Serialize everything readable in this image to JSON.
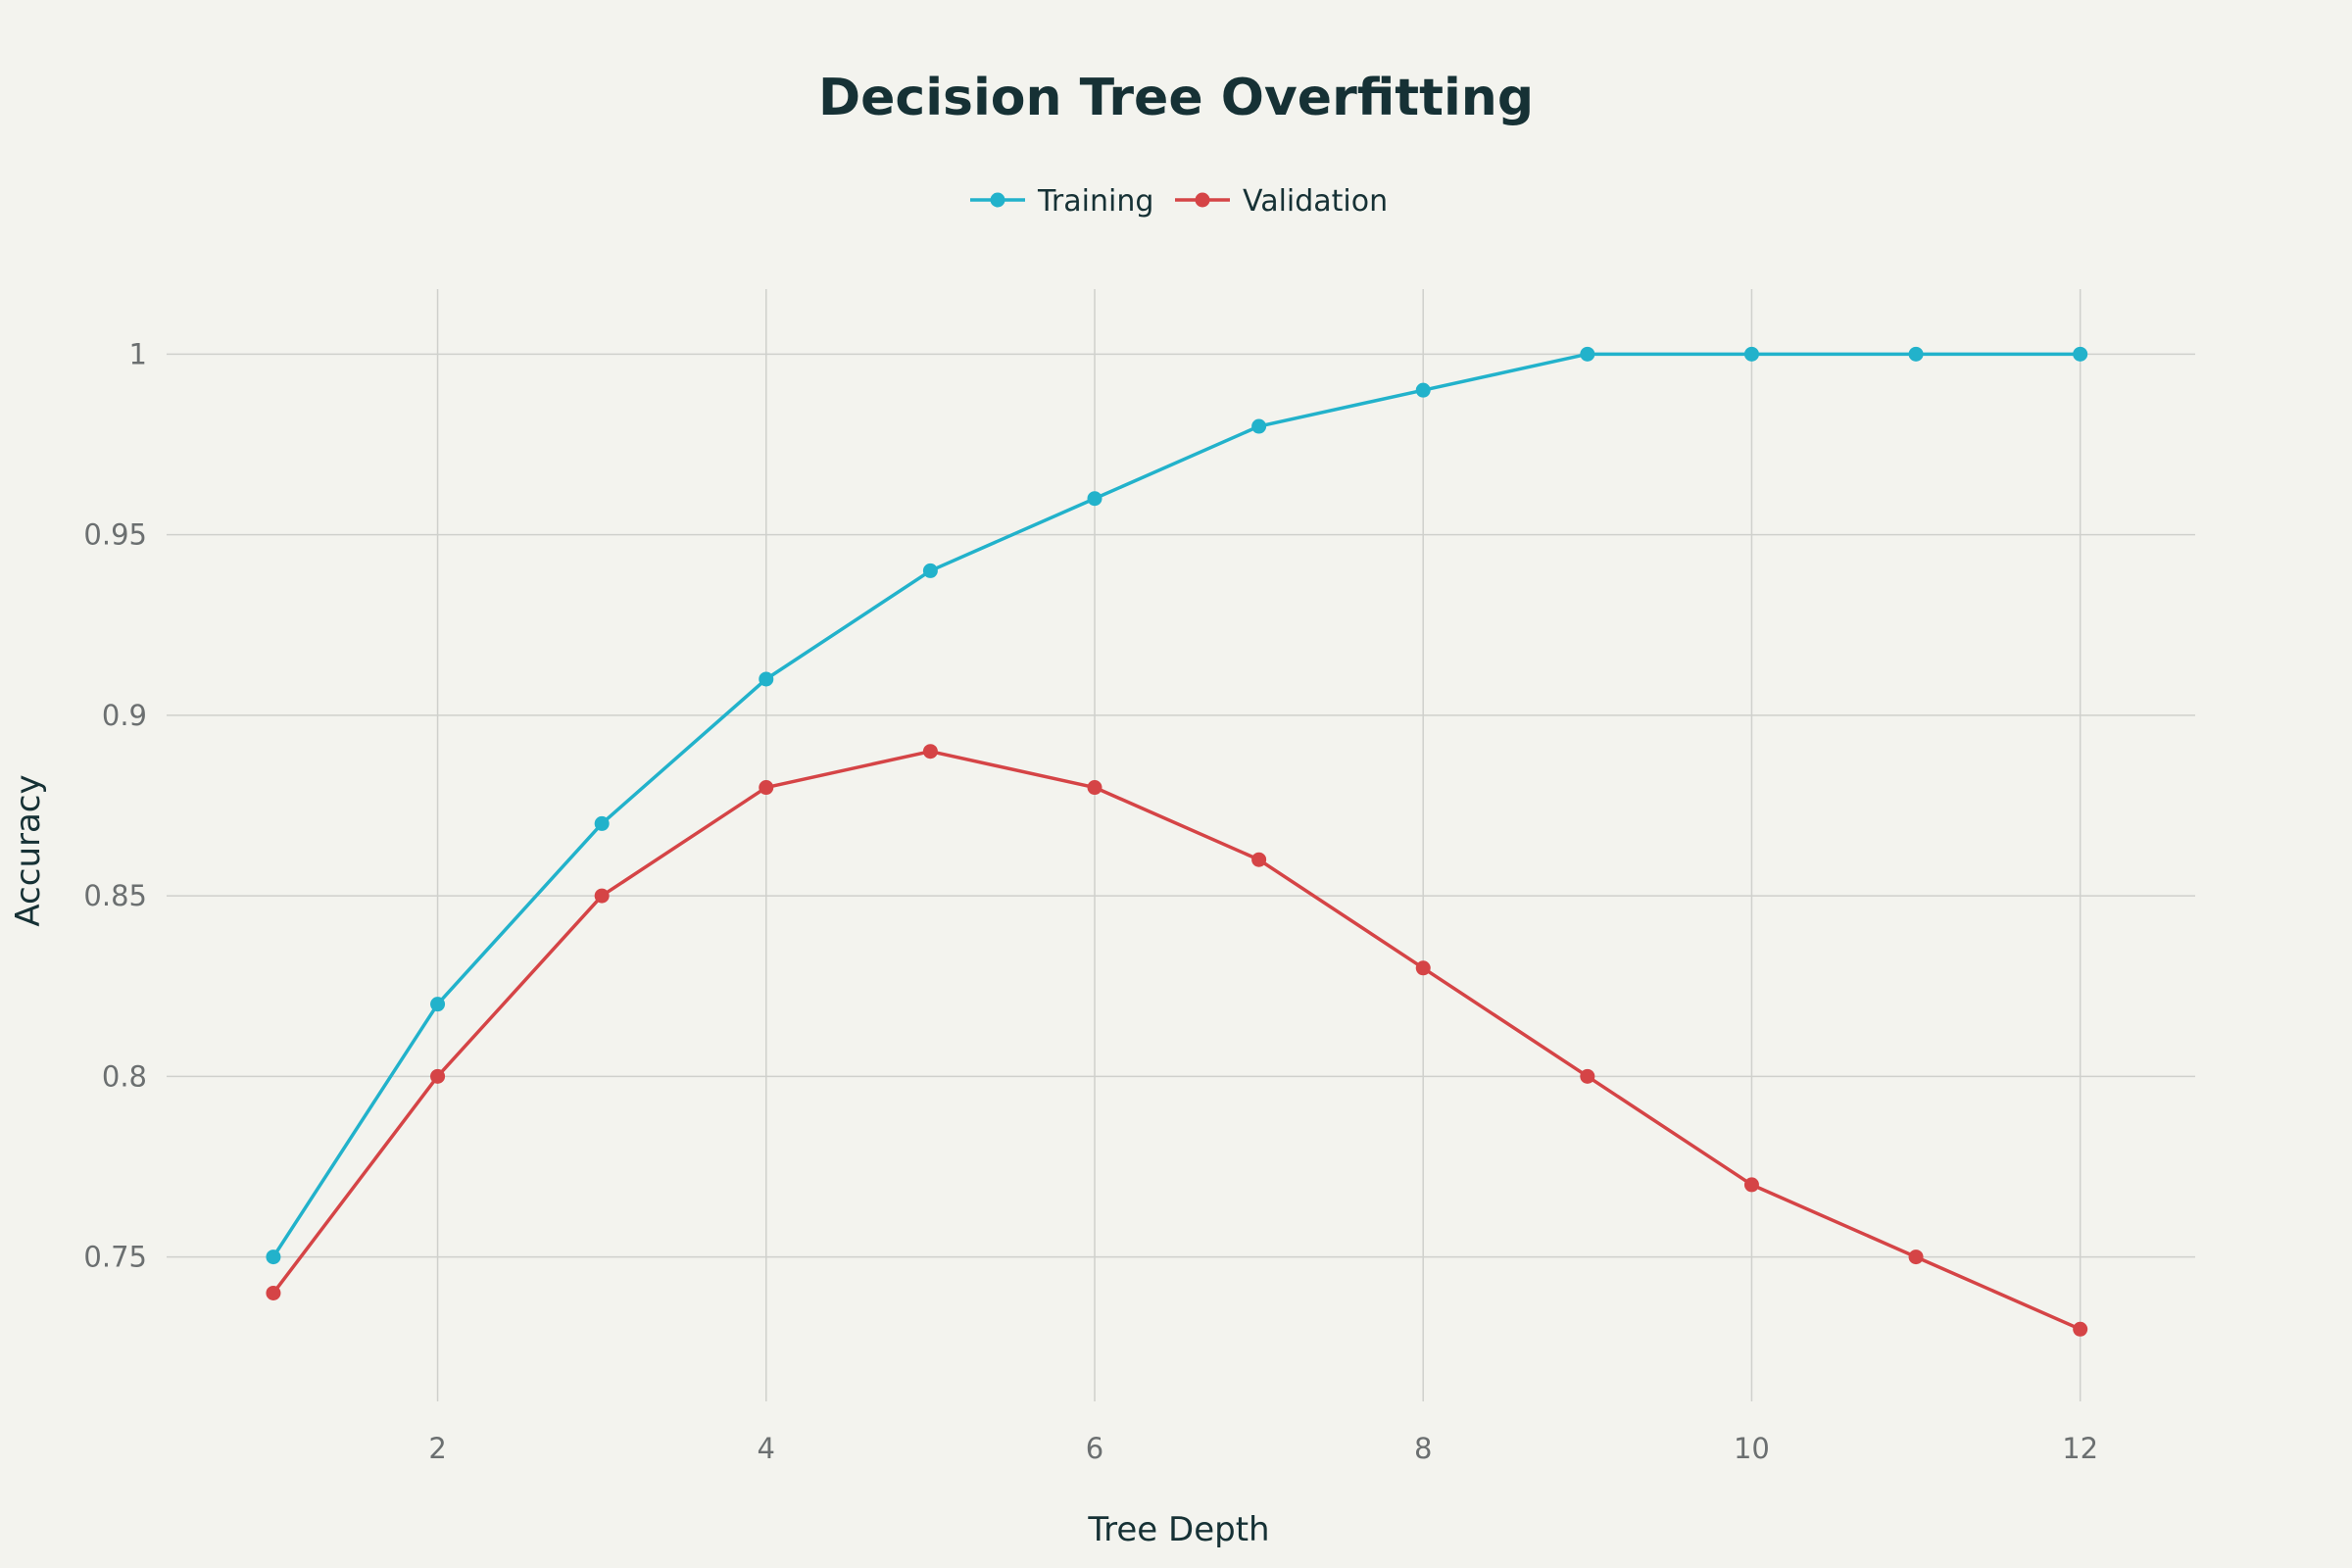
{
  "chart_data": {
    "type": "line",
    "title": "Decision Tree Overfitting",
    "xlabel": "Tree Depth",
    "ylabel": "Accuracy",
    "x": [
      1,
      2,
      3,
      4,
      5,
      6,
      7,
      8,
      9,
      10,
      11,
      12
    ],
    "xlim": [
      0.35,
      12.7
    ],
    "ylim": [
      0.71,
      1.018
    ],
    "xticks": [
      2,
      4,
      6,
      8,
      10,
      12
    ],
    "xtick_labels": [
      "2",
      "4",
      "6",
      "8",
      "10",
      "12"
    ],
    "yticks": [
      0.75,
      0.8,
      0.85,
      0.9,
      0.95,
      1
    ],
    "ytick_labels": [
      "0.75",
      "0.8",
      "0.85",
      "0.9",
      "0.95",
      "1"
    ],
    "grid": true,
    "legend_position": "top-center",
    "series": [
      {
        "name": "Training",
        "color": "#22b2cb",
        "values": [
          0.75,
          0.82,
          0.87,
          0.91,
          0.94,
          0.96,
          0.98,
          0.99,
          1.0,
          1.0,
          1.0,
          1.0
        ]
      },
      {
        "name": "Validation",
        "color": "#d54446",
        "values": [
          0.74,
          0.8,
          0.85,
          0.88,
          0.89,
          0.88,
          0.86,
          0.83,
          0.8,
          0.77,
          0.75,
          0.73
        ]
      }
    ]
  }
}
